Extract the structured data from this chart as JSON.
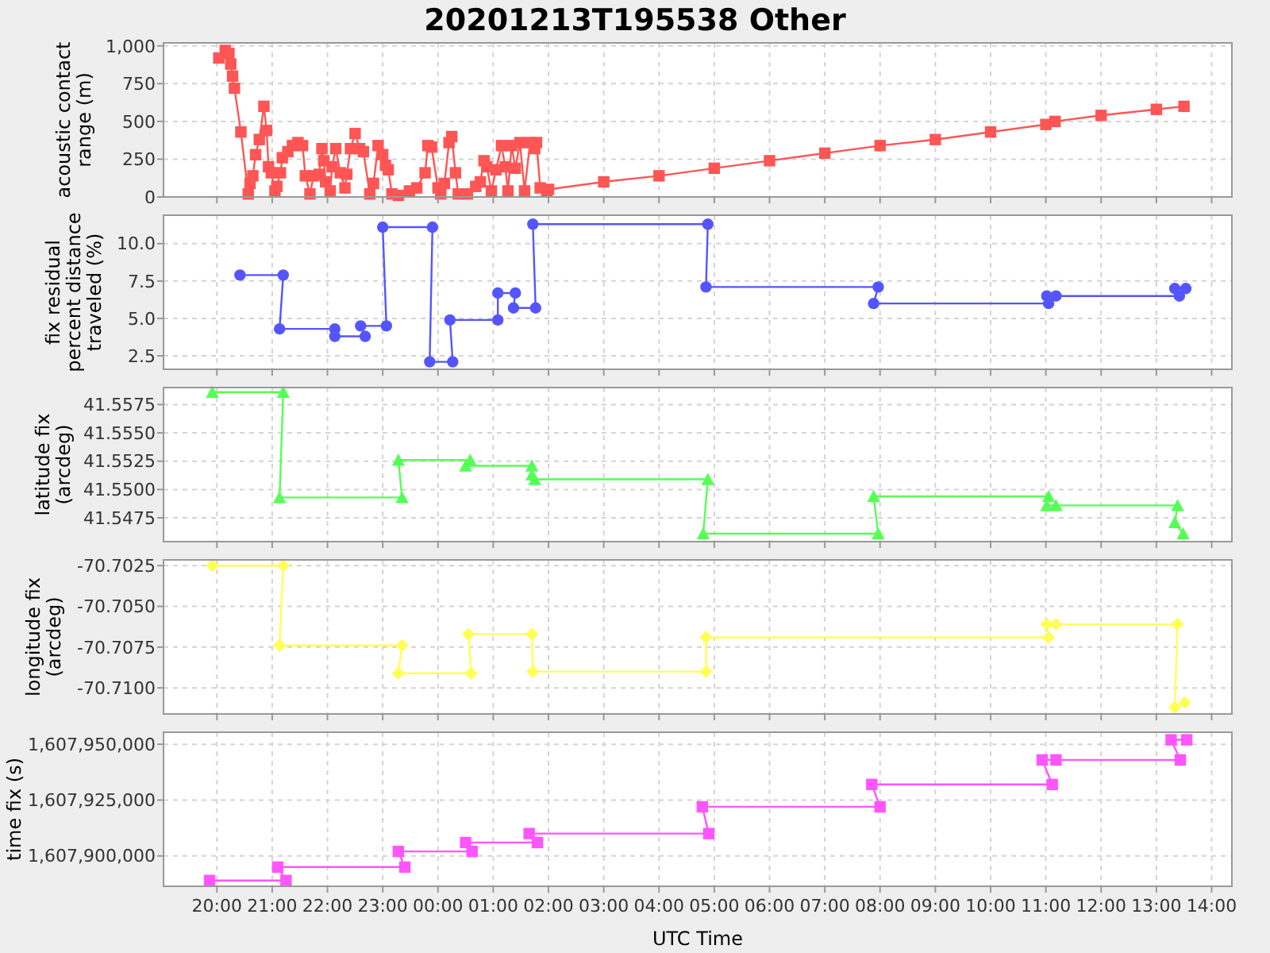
{
  "chart_data": [
    {
      "type": "line",
      "title": "20201213T195538 Other",
      "ylabel": "acoustic contact range (m)",
      "xlim": [
        "2020-12-13T19:02",
        "2020-12-14T14:22"
      ],
      "xticks": [
        {
          "value": "2020-12-13T20:00",
          "label": null
        },
        {
          "value": "2020-12-13T21:00",
          "label": null
        },
        {
          "value": "2020-12-13T22:00",
          "label": null
        },
        {
          "value": "2020-12-13T23:00",
          "label": null
        },
        {
          "value": "2020-12-14T00:00",
          "label": null
        },
        {
          "value": "2020-12-14T01:00",
          "label": null
        },
        {
          "value": "2020-12-14T02:00",
          "label": null
        },
        {
          "value": "2020-12-14T03:00",
          "label": null
        },
        {
          "value": "2020-12-14T04:00",
          "label": null
        },
        {
          "value": "2020-12-14T05:00",
          "label": null
        },
        {
          "value": "2020-12-14T06:00",
          "label": null
        },
        {
          "value": "2020-12-14T07:00",
          "label": null
        },
        {
          "value": "2020-12-14T08:00",
          "label": null
        },
        {
          "value": "2020-12-14T09:00",
          "label": null
        },
        {
          "value": "2020-12-14T10:00",
          "label": null
        },
        {
          "value": "2020-12-14T11:00",
          "label": null
        },
        {
          "value": "2020-12-14T12:00",
          "label": null
        },
        {
          "value": "2020-12-14T13:00",
          "label": null
        },
        {
          "value": "2020-12-14T14:00",
          "label": null
        }
      ],
      "ylim": [
        0,
        1020
      ],
      "yticks": [
        0,
        250,
        500,
        750,
        {
          "value": 1000,
          "label": "1,000"
        }
      ],
      "grid": true,
      "marker": "square",
      "tick_labels": "y",
      "series": [
        {
          "color": "#ff5555",
          "x": [
            "2020-12-13T20:02",
            "2020-12-13T20:09",
            "2020-12-13T20:13",
            "2020-12-13T20:15",
            "2020-12-13T20:17",
            "2020-12-13T20:19",
            "2020-12-13T20:26",
            "2020-12-13T20:34",
            "2020-12-13T20:36",
            "2020-12-13T20:39",
            "2020-12-13T20:42",
            "2020-12-13T20:46",
            "2020-12-13T20:51",
            "2020-12-13T20:54",
            "2020-12-13T20:56",
            "2020-12-13T20:59",
            "2020-12-13T21:03",
            "2020-12-13T21:05",
            "2020-12-13T21:09",
            "2020-12-13T21:11",
            "2020-12-13T21:17",
            "2020-12-13T21:22",
            "2020-12-13T21:28",
            "2020-12-13T21:33",
            "2020-12-13T21:36",
            "2020-12-13T21:41",
            "2020-12-13T21:45",
            "2020-12-13T21:51",
            "2020-12-13T21:54",
            "2020-12-13T21:56",
            "2020-12-13T21:58",
            "2020-12-13T22:03",
            "2020-12-13T22:05",
            "2020-12-13T22:09",
            "2020-12-13T22:14",
            "2020-12-13T22:19",
            "2020-12-13T22:21",
            "2020-12-13T22:25",
            "2020-12-13T22:30",
            "2020-12-13T22:35",
            "2020-12-13T22:39",
            "2020-12-13T22:46",
            "2020-12-13T22:50",
            "2020-12-13T22:55",
            "2020-12-13T23:00",
            "2020-12-13T23:03",
            "2020-12-13T23:06",
            "2020-12-13T23:10",
            "2020-12-13T23:17",
            "2020-12-13T23:29",
            "2020-12-13T23:37",
            "2020-12-13T23:46",
            "2020-12-13T23:49",
            "2020-12-13T23:53",
            "2020-12-14T00:00",
            "2020-12-14T00:03",
            "2020-12-14T00:07",
            "2020-12-14T00:12",
            "2020-12-14T00:15",
            "2020-12-14T00:19",
            "2020-12-14T00:22",
            "2020-12-14T00:32",
            "2020-12-14T00:41",
            "2020-12-14T00:46",
            "2020-12-14T00:50",
            "2020-12-14T00:53",
            "2020-12-14T00:58",
            "2020-12-14T01:03",
            "2020-12-14T01:09",
            "2020-12-14T01:13",
            "2020-12-14T01:16",
            "2020-12-14T01:20",
            "2020-12-14T01:24",
            "2020-12-14T01:29",
            "2020-12-14T01:34",
            "2020-12-14T01:40",
            "2020-12-14T01:45",
            "2020-12-14T01:47",
            "2020-12-14T01:51",
            "2020-12-14T01:58",
            "2020-12-14T02:00",
            "2020-12-14T03:00",
            "2020-12-14T04:00",
            "2020-12-14T05:00",
            "2020-12-14T06:00",
            "2020-12-14T07:00",
            "2020-12-14T08:00",
            "2020-12-14T09:00",
            "2020-12-14T10:00",
            "2020-12-14T11:00",
            "2020-12-14T11:10",
            "2020-12-14T12:00",
            "2020-12-14T13:00",
            "2020-12-14T13:30"
          ],
          "values": [
            920,
            970,
            950,
            880,
            800,
            720,
            430,
            20,
            90,
            140,
            280,
            380,
            600,
            440,
            200,
            160,
            40,
            70,
            160,
            260,
            300,
            340,
            360,
            340,
            140,
            20,
            140,
            150,
            320,
            240,
            100,
            40,
            200,
            320,
            160,
            60,
            150,
            320,
            420,
            320,
            300,
            20,
            90,
            340,
            280,
            210,
            180,
            20,
            10,
            40,
            60,
            160,
            340,
            330,
            60,
            20,
            90,
            360,
            400,
            160,
            20,
            20,
            70,
            100,
            240,
            200,
            40,
            180,
            340,
            200,
            40,
            340,
            190,
            360,
            40,
            360,
            320,
            360,
            60,
            40,
            50,
            100,
            140,
            190,
            240,
            290,
            340,
            380,
            430,
            480,
            500,
            540,
            580,
            600
          ]
        }
      ]
    },
    {
      "type": "line",
      "ylabel": "fix residual percent distance traveled (%)",
      "xlim": [
        "2020-12-13T19:02",
        "2020-12-14T14:22"
      ],
      "xticks": [
        {
          "value": "2020-12-13T20:00",
          "label": null
        },
        {
          "value": "2020-12-13T21:00",
          "label": null
        },
        {
          "value": "2020-12-13T22:00",
          "label": null
        },
        {
          "value": "2020-12-13T23:00",
          "label": null
        },
        {
          "value": "2020-12-14T00:00",
          "label": null
        },
        {
          "value": "2020-12-14T01:00",
          "label": null
        },
        {
          "value": "2020-12-14T02:00",
          "label": null
        },
        {
          "value": "2020-12-14T03:00",
          "label": null
        },
        {
          "value": "2020-12-14T04:00",
          "label": null
        },
        {
          "value": "2020-12-14T05:00",
          "label": null
        },
        {
          "value": "2020-12-14T06:00",
          "label": null
        },
        {
          "value": "2020-12-14T07:00",
          "label": null
        },
        {
          "value": "2020-12-14T08:00",
          "label": null
        },
        {
          "value": "2020-12-14T09:00",
          "label": null
        },
        {
          "value": "2020-12-14T10:00",
          "label": null
        },
        {
          "value": "2020-12-14T11:00",
          "label": null
        },
        {
          "value": "2020-12-14T12:00",
          "label": null
        },
        {
          "value": "2020-12-14T13:00",
          "label": null
        },
        {
          "value": "2020-12-14T14:00",
          "label": null
        }
      ],
      "ylim": [
        1.6,
        11.9
      ],
      "yticks": [
        2.5,
        {
          "value": 5,
          "label": "5.0"
        },
        7.5,
        {
          "value": 10,
          "label": "10.0"
        }
      ],
      "grid": true,
      "marker": "circle",
      "tick_labels": "y",
      "series": [
        {
          "color": "#5555ff",
          "x": [
            "2020-12-13T20:25",
            "2020-12-13T21:12",
            "2020-12-13T21:08",
            "2020-12-13T22:08",
            "2020-12-13T22:08",
            "2020-12-13T22:41",
            "2020-12-13T22:36",
            "2020-12-13T23:04",
            "2020-12-13T23:00",
            "2020-12-13T23:54",
            "2020-12-13T23:51",
            "2020-12-14T00:16",
            "2020-12-14T00:13",
            "2020-12-14T01:05",
            "2020-12-14T01:05",
            "2020-12-14T01:24",
            "2020-12-14T01:22",
            "2020-12-14T01:46",
            "2020-12-14T01:43",
            "2020-12-14T04:53",
            "2020-12-14T04:51",
            "2020-12-14T07:58",
            "2020-12-14T07:53",
            "2020-12-14T11:03",
            "2020-12-14T11:01",
            "2020-12-14T11:11",
            "2020-12-14T13:25",
            "2020-12-14T13:20",
            "2020-12-14T13:32"
          ],
          "values": [
            7.9,
            7.9,
            4.3,
            4.3,
            3.8,
            3.8,
            4.5,
            4.5,
            11.1,
            11.1,
            2.1,
            2.1,
            4.9,
            4.9,
            6.7,
            6.7,
            5.7,
            5.7,
            11.3,
            11.3,
            7.1,
            7.1,
            6.0,
            6.0,
            6.5,
            6.5,
            6.5,
            7.0,
            7.0
          ]
        }
      ]
    },
    {
      "type": "line",
      "ylabel": "latitude fix (arcdeg)",
      "xlim": [
        "2020-12-13T19:02",
        "2020-12-14T14:22"
      ],
      "xticks": [
        {
          "value": "2020-12-13T20:00",
          "label": null
        },
        {
          "value": "2020-12-13T21:00",
          "label": null
        },
        {
          "value": "2020-12-13T22:00",
          "label": null
        },
        {
          "value": "2020-12-13T23:00",
          "label": null
        },
        {
          "value": "2020-12-14T00:00",
          "label": null
        },
        {
          "value": "2020-12-14T01:00",
          "label": null
        },
        {
          "value": "2020-12-14T02:00",
          "label": null
        },
        {
          "value": "2020-12-14T03:00",
          "label": null
        },
        {
          "value": "2020-12-14T04:00",
          "label": null
        },
        {
          "value": "2020-12-14T05:00",
          "label": null
        },
        {
          "value": "2020-12-14T06:00",
          "label": null
        },
        {
          "value": "2020-12-14T07:00",
          "label": null
        },
        {
          "value": "2020-12-14T08:00",
          "label": null
        },
        {
          "value": "2020-12-14T09:00",
          "label": null
        },
        {
          "value": "2020-12-14T10:00",
          "label": null
        },
        {
          "value": "2020-12-14T11:00",
          "label": null
        },
        {
          "value": "2020-12-14T12:00",
          "label": null
        },
        {
          "value": "2020-12-14T13:00",
          "label": null
        },
        {
          "value": "2020-12-14T14:00",
          "label": null
        }
      ],
      "ylim": [
        41.5454,
        41.559
      ],
      "yticks": [
        41.5475,
        {
          "value": 41.55,
          "label": "41.5500"
        },
        41.5525,
        {
          "value": 41.555,
          "label": "41.5550"
        },
        41.5575
      ],
      "grid": true,
      "marker": "triangle",
      "tick_labels": "y",
      "series": [
        {
          "color": "#55ff55",
          "x": [
            "2020-12-13T19:55",
            "2020-12-13T21:12",
            "2020-12-13T21:08",
            "2020-12-13T23:21",
            "2020-12-13T23:17",
            "2020-12-14T00:35",
            "2020-12-14T00:30",
            "2020-12-14T01:42",
            "2020-12-14T01:42",
            "2020-12-14T01:45",
            "2020-12-14T04:53",
            "2020-12-14T04:48",
            "2020-12-14T07:58",
            "2020-12-14T07:53",
            "2020-12-14T11:03",
            "2020-12-14T11:01",
            "2020-12-14T11:11",
            "2020-12-14T13:23",
            "2020-12-14T13:20",
            "2020-12-14T13:29"
          ],
          "values": [
            41.5586,
            41.5586,
            41.5493,
            41.5493,
            41.5526,
            41.5526,
            41.5521,
            41.5521,
            41.5513,
            41.5509,
            41.5509,
            41.5461,
            41.5461,
            41.5494,
            41.5494,
            41.5486,
            41.5486,
            41.5486,
            41.5471,
            41.5461
          ]
        }
      ]
    },
    {
      "type": "line",
      "ylabel": "longitude fix (arcdeg)",
      "xlim": [
        "2020-12-13T19:02",
        "2020-12-14T14:22"
      ],
      "xticks": [
        {
          "value": "2020-12-13T20:00",
          "label": null
        },
        {
          "value": "2020-12-13T21:00",
          "label": null
        },
        {
          "value": "2020-12-13T22:00",
          "label": null
        },
        {
          "value": "2020-12-13T23:00",
          "label": null
        },
        {
          "value": "2020-12-14T00:00",
          "label": null
        },
        {
          "value": "2020-12-14T01:00",
          "label": null
        },
        {
          "value": "2020-12-14T02:00",
          "label": null
        },
        {
          "value": "2020-12-14T03:00",
          "label": null
        },
        {
          "value": "2020-12-14T04:00",
          "label": null
        },
        {
          "value": "2020-12-14T05:00",
          "label": null
        },
        {
          "value": "2020-12-14T06:00",
          "label": null
        },
        {
          "value": "2020-12-14T07:00",
          "label": null
        },
        {
          "value": "2020-12-14T08:00",
          "label": null
        },
        {
          "value": "2020-12-14T09:00",
          "label": null
        },
        {
          "value": "2020-12-14T10:00",
          "label": null
        },
        {
          "value": "2020-12-14T11:00",
          "label": null
        },
        {
          "value": "2020-12-14T12:00",
          "label": null
        },
        {
          "value": "2020-12-14T13:00",
          "label": null
        },
        {
          "value": "2020-12-14T14:00",
          "label": null
        }
      ],
      "ylim": [
        -70.7116,
        -70.70215
      ],
      "yticks": [
        {
          "value": -70.71,
          "label": "-70.7100"
        },
        -70.7075,
        {
          "value": -70.705,
          "label": "-70.7050"
        },
        -70.7025
      ],
      "grid": true,
      "marker": "diamond",
      "tick_labels": "y",
      "series": [
        {
          "color": "#ffff55",
          "x": [
            "2020-12-13T19:55",
            "2020-12-13T21:12",
            "2020-12-13T21:08",
            "2020-12-13T23:21",
            "2020-12-13T23:17",
            "2020-12-14T00:36",
            "2020-12-14T00:33",
            "2020-12-14T01:42",
            "2020-12-14T01:43",
            "2020-12-14T04:51",
            "2020-12-14T04:51",
            "2020-12-14T11:03",
            "2020-12-14T11:01",
            "2020-12-14T11:11",
            "2020-12-14T13:23",
            "2020-12-14T13:20",
            "2020-12-14T13:31"
          ],
          "values": [
            -70.7025,
            -70.7025,
            -70.7074,
            -70.7074,
            -70.7091,
            -70.7091,
            -70.7067,
            -70.7067,
            -70.709,
            -70.709,
            -70.7069,
            -70.7069,
            -70.7061,
            -70.7061,
            -70.7061,
            -70.7112,
            -70.7109
          ]
        }
      ]
    },
    {
      "type": "line",
      "ylabel": "time fix (s)",
      "xlabel": "UTC Time",
      "xlim": [
        "2020-12-13T19:02",
        "2020-12-14T14:22"
      ],
      "xticks": [
        {
          "value": "2020-12-13T20:00",
          "label": "20:00"
        },
        {
          "value": "2020-12-13T21:00",
          "label": "21:00"
        },
        {
          "value": "2020-12-13T22:00",
          "label": "22:00"
        },
        {
          "value": "2020-12-13T23:00",
          "label": "23:00"
        },
        {
          "value": "2020-12-14T00:00",
          "label": "00:00"
        },
        {
          "value": "2020-12-14T01:00",
          "label": "01:00"
        },
        {
          "value": "2020-12-14T02:00",
          "label": "02:00"
        },
        {
          "value": "2020-12-14T03:00",
          "label": "03:00"
        },
        {
          "value": "2020-12-14T04:00",
          "label": "04:00"
        },
        {
          "value": "2020-12-14T05:00",
          "label": "05:00"
        },
        {
          "value": "2020-12-14T06:00",
          "label": "06:00"
        },
        {
          "value": "2020-12-14T07:00",
          "label": "07:00"
        },
        {
          "value": "2020-12-14T08:00",
          "label": "08:00"
        },
        {
          "value": "2020-12-14T09:00",
          "label": "09:00"
        },
        {
          "value": "2020-12-14T10:00",
          "label": "10:00"
        },
        {
          "value": "2020-12-14T11:00",
          "label": "11:00"
        },
        {
          "value": "2020-12-14T12:00",
          "label": "12:00"
        },
        {
          "value": "2020-12-14T13:00",
          "label": "13:00"
        },
        {
          "value": "2020-12-14T14:00",
          "label": "14:00"
        }
      ],
      "ylim": [
        1607886400,
        1607955400
      ],
      "yticks": [
        {
          "value": 1607900000,
          "label": "1,607,900,000"
        },
        {
          "value": 1607925000,
          "label": "1,607,925,000"
        },
        {
          "value": 1607950000,
          "label": "1,607,950,000"
        }
      ],
      "grid": true,
      "marker": "square",
      "series": [
        {
          "color": "#ff55ff",
          "x": [
            "2020-12-13T19:52",
            "2020-12-13T21:15",
            "2020-12-13T21:06",
            "2020-12-13T23:24",
            "2020-12-13T23:17",
            "2020-12-14T00:37",
            "2020-12-14T00:30",
            "2020-12-14T01:48",
            "2020-12-14T01:39",
            "2020-12-14T04:54",
            "2020-12-14T04:47",
            "2020-12-14T08:00",
            "2020-12-14T07:51",
            "2020-12-14T11:07",
            "2020-12-14T10:56",
            "2020-12-14T11:11",
            "2020-12-14T13:26",
            "2020-12-14T13:16",
            "2020-12-14T13:33"
          ],
          "values": [
            1607889000,
            1607889000,
            1607895000,
            1607895000,
            1607902000,
            1607902000,
            1607906000,
            1607906000,
            1607910000,
            1607910000,
            1607922000,
            1607922000,
            1607932000,
            1607932000,
            1607943000,
            1607943000,
            1607943000,
            1607952000,
            1607952000
          ]
        }
      ]
    }
  ]
}
